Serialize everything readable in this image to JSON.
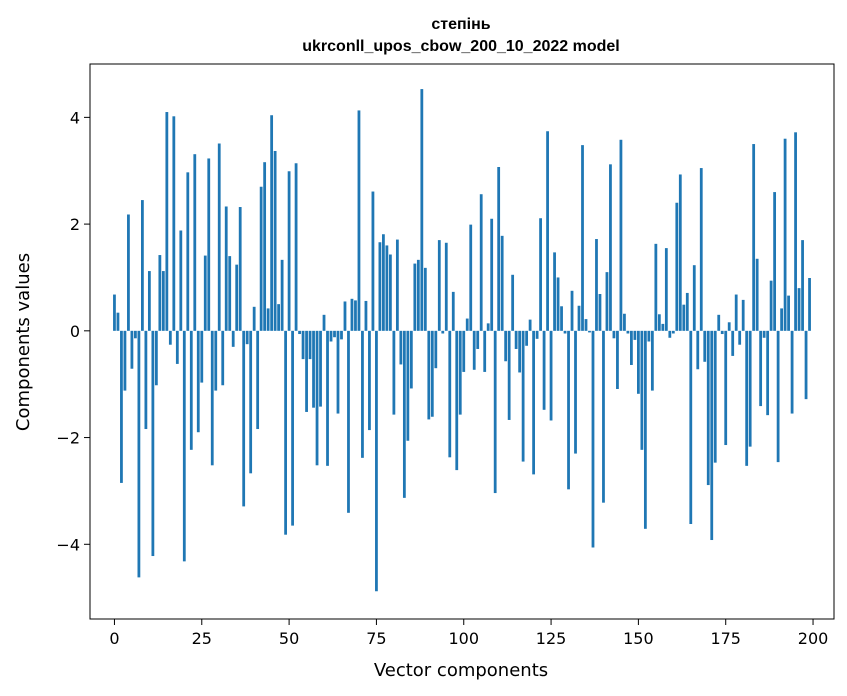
{
  "chart_data": {
    "type": "bar",
    "title": "степінь",
    "subtitle": "ukrconll_upos_cbow_200_10_2022 model",
    "xlabel": "Vector components",
    "ylabel": "Components values",
    "xlim": [
      -7,
      206
    ],
    "ylim": [
      -5.4,
      5.0
    ],
    "xticks": [
      0,
      25,
      50,
      75,
      100,
      125,
      150,
      175,
      200
    ],
    "xtick_labels": [
      "0",
      "25",
      "50",
      "75",
      "100",
      "125",
      "150",
      "175",
      "200"
    ],
    "yticks": [
      -4,
      -2,
      0,
      2,
      4
    ],
    "ytick_labels": [
      "−4",
      "−2",
      "0",
      "2",
      "4"
    ],
    "grid": false,
    "bar_color": "#1f77b4",
    "x": [
      0,
      1,
      2,
      3,
      4,
      5,
      6,
      7,
      8,
      9,
      10,
      11,
      12,
      13,
      14,
      15,
      16,
      17,
      18,
      19,
      20,
      21,
      22,
      23,
      24,
      25,
      26,
      27,
      28,
      29,
      30,
      31,
      32,
      33,
      34,
      35,
      36,
      37,
      38,
      39,
      40,
      41,
      42,
      43,
      44,
      45,
      46,
      47,
      48,
      49,
      50,
      51,
      52,
      53,
      54,
      55,
      56,
      57,
      58,
      59,
      60,
      61,
      62,
      63,
      64,
      65,
      66,
      67,
      68,
      69,
      70,
      71,
      72,
      73,
      74,
      75,
      76,
      77,
      78,
      79,
      80,
      81,
      82,
      83,
      84,
      85,
      86,
      87,
      88,
      89,
      90,
      91,
      92,
      93,
      94,
      95,
      96,
      97,
      98,
      99,
      100,
      101,
      102,
      103,
      104,
      105,
      106,
      107,
      108,
      109,
      110,
      111,
      112,
      113,
      114,
      115,
      116,
      117,
      118,
      119,
      120,
      121,
      122,
      123,
      124,
      125,
      126,
      127,
      128,
      129,
      130,
      131,
      132,
      133,
      134,
      135,
      136,
      137,
      138,
      139,
      140,
      141,
      142,
      143,
      144,
      145,
      146,
      147,
      148,
      149,
      150,
      151,
      152,
      153,
      154,
      155,
      156,
      157,
      158,
      159,
      160,
      161,
      162,
      163,
      164,
      165,
      166,
      167,
      168,
      169,
      170,
      171,
      172,
      173,
      174,
      175,
      176,
      177,
      178,
      179,
      180,
      181,
      182,
      183,
      184,
      185,
      186,
      187,
      188,
      189,
      190,
      191,
      192,
      193,
      194,
      195,
      196,
      197,
      198,
      199
    ],
    "values": [
      0.68,
      0.34,
      -2.85,
      -1.12,
      2.18,
      -0.71,
      -0.14,
      -4.62,
      2.45,
      -1.84,
      1.12,
      -4.22,
      -1.02,
      1.42,
      1.12,
      4.1,
      -0.26,
      4.02,
      -0.62,
      1.88,
      -4.32,
      2.97,
      -2.23,
      3.31,
      -1.9,
      -0.97,
      1.41,
      3.23,
      -2.52,
      -1.12,
      3.51,
      -1.02,
      2.33,
      1.4,
      -0.3,
      1.24,
      2.32,
      -3.29,
      -0.25,
      -2.67,
      0.45,
      -1.84,
      2.7,
      3.16,
      0.42,
      4.04,
      3.37,
      0.5,
      1.33,
      -3.82,
      2.99,
      -3.65,
      3.14,
      -0.06,
      -0.53,
      -1.52,
      -0.53,
      -1.44,
      -2.52,
      -1.42,
      0.3,
      -2.53,
      -0.2,
      -0.12,
      -1.55,
      -0.16,
      0.55,
      -3.41,
      0.6,
      0.57,
      4.13,
      -2.38,
      0.56,
      -1.86,
      2.61,
      -4.88,
      1.66,
      1.81,
      1.6,
      1.43,
      -1.57,
      1.71,
      -0.63,
      -3.13,
      -2.06,
      -1.08,
      1.26,
      1.33,
      4.53,
      1.18,
      -1.66,
      -1.61,
      -0.7,
      1.7,
      -0.05,
      1.65,
      -2.37,
      0.73,
      -2.61,
      -1.57,
      -0.77,
      0.23,
      1.99,
      -0.73,
      -0.34,
      2.56,
      -0.77,
      0.14,
      2.1,
      -3.04,
      3.07,
      1.78,
      -0.57,
      -1.67,
      1.05,
      -0.34,
      -0.78,
      -2.45,
      -0.28,
      0.21,
      -2.69,
      -0.15,
      2.11,
      -1.48,
      3.74,
      -1.68,
      1.47,
      1.0,
      0.46,
      -0.05,
      -2.97,
      0.75,
      -2.3,
      0.47,
      3.48,
      0.22,
      -0.03,
      -4.06,
      1.72,
      0.69,
      -3.22,
      1.1,
      3.12,
      -0.14,
      -1.09,
      3.58,
      0.32,
      -0.05,
      -0.64,
      -0.17,
      -1.18,
      -2.23,
      -3.71,
      -0.2,
      -1.12,
      1.63,
      0.31,
      0.13,
      1.55,
      -0.13,
      -0.05,
      2.4,
      2.93,
      0.49,
      0.71,
      -3.62,
      1.23,
      -0.72,
      3.05,
      -0.58,
      -2.89,
      -3.92,
      -2.47,
      0.3,
      -0.06,
      -2.14,
      0.16,
      -0.47,
      0.68,
      -0.26,
      0.58,
      -2.53,
      -2.17,
      3.5,
      1.35,
      -1.41,
      -0.13,
      -1.58,
      0.94,
      2.6,
      -2.46,
      0.42,
      3.6,
      0.66,
      -1.55,
      3.72,
      0.8,
      1.7,
      -1.28,
      0.99
    ]
  }
}
